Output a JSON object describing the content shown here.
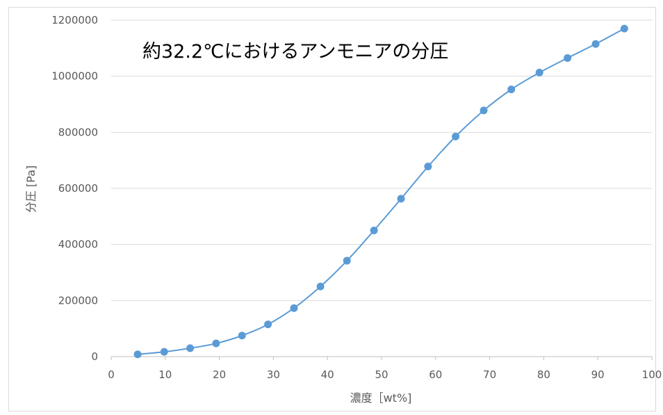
{
  "chart_data": {
    "type": "scatter",
    "title": "約32.2℃におけるアンモニアの分圧",
    "xlabel": "濃度［wt%]",
    "ylabel": "分圧 [Pa]",
    "xlim": [
      0,
      100
    ],
    "ylim": [
      0,
      1200000
    ],
    "x_ticks": [
      "0",
      "10",
      "20",
      "30",
      "40",
      "50",
      "60",
      "70",
      "80",
      "90",
      "100"
    ],
    "y_ticks": [
      "0",
      "200000",
      "400000",
      "600000",
      "800000",
      "1000000",
      "1200000"
    ],
    "grid": true,
    "marker_style": "smooth line with markers",
    "series": [
      {
        "color": "#5b9bd5",
        "x": [
          4.9,
          9.8,
          14.6,
          19.4,
          24.2,
          29.0,
          33.8,
          38.7,
          43.6,
          48.6,
          53.6,
          58.6,
          63.7,
          68.9,
          74.0,
          79.2,
          84.4,
          89.6,
          94.9
        ],
        "y": [
          8000,
          17000,
          30000,
          47000,
          75000,
          115000,
          173000,
          250000,
          342000,
          450000,
          563000,
          678000,
          785000,
          878000,
          953000,
          1013000,
          1065000,
          1115000,
          1170000
        ]
      }
    ]
  }
}
